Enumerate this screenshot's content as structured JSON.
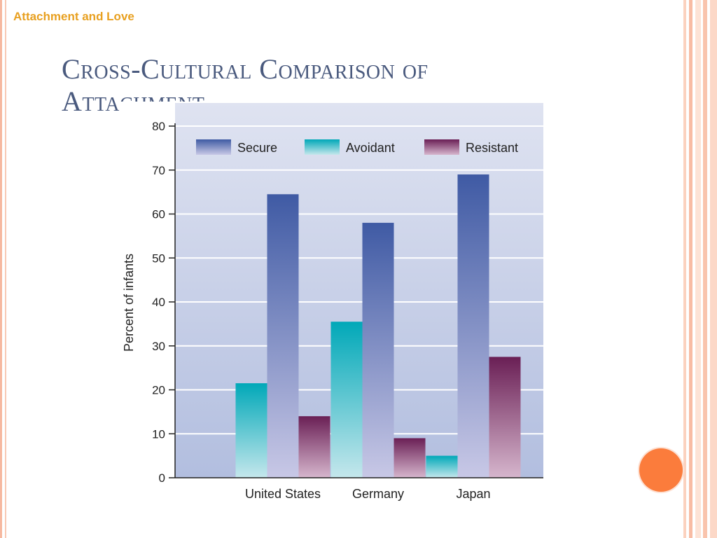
{
  "slide": {
    "header": "Attachment and Love",
    "title": "Cross-Cultural Comparison of Attachment"
  },
  "colors": {
    "accent_orange": "#fb7c3c",
    "header_text": "#e8a020",
    "title_text": "#4a5a7e",
    "secure": "#3f5aa4",
    "avoidant": "#00a8b8",
    "resistant": "#6a1f55"
  },
  "chart_data": {
    "type": "bar",
    "categories": [
      "United States",
      "Germany",
      "Japan"
    ],
    "series": [
      {
        "name": "Avoidant",
        "values": [
          21.5,
          35.5,
          5
        ]
      },
      {
        "name": "Secure",
        "values": [
          64.5,
          58,
          69
        ]
      },
      {
        "name": "Resistant",
        "values": [
          14,
          9,
          27.5
        ]
      }
    ],
    "legend_order": [
      "Secure",
      "Avoidant",
      "Resistant"
    ],
    "legend_placement": "top",
    "ylabel": "Percent of infants",
    "xlabel": "",
    "ylim": [
      0,
      80
    ],
    "yticks": [
      0,
      10,
      20,
      30,
      40,
      50,
      60,
      70,
      80
    ],
    "grid": true
  }
}
